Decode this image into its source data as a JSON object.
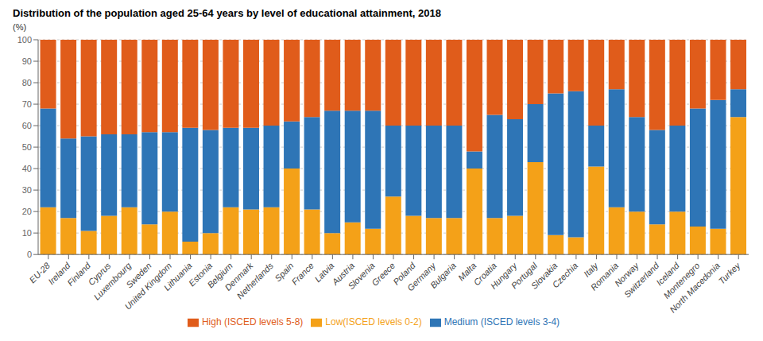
{
  "chart_data": {
    "type": "bar",
    "title": "Distribution of the population aged 25-64 years  by level of educational attainment, 2018",
    "ylabel": "(%)",
    "categories": [
      "EU-28",
      "Ireland",
      "Finland",
      "Cyprus",
      "Luxembourg",
      "Sweden",
      "United Kingdom",
      "Lithuania",
      "Estonia",
      "Belgium",
      "Denmark",
      "Netherlands",
      "Spain",
      "France",
      "Latvia",
      "Austria",
      "Slovenia",
      "Greece",
      "Poland",
      "Germany",
      "Bulgaria",
      "Malta",
      "Croatia",
      "Hungary",
      "Portugal",
      "Slovakia",
      "Czechia",
      "Italy",
      "Romania",
      "Norway",
      "Switzerland",
      "Iceland",
      "Montenegro",
      "North Macedonia",
      "Turkey"
    ],
    "series": [
      {
        "name": "Low(ISCED levels 0-2)",
        "color": "#f4a118",
        "values": [
          22,
          17,
          11,
          18,
          22,
          14,
          20,
          6,
          10,
          22,
          21,
          22,
          40,
          21,
          10,
          15,
          12,
          27,
          18,
          17,
          17,
          40,
          17,
          18,
          43,
          9,
          8,
          41,
          22,
          20,
          14,
          20,
          13,
          12,
          64
        ]
      },
      {
        "name": "Medium (ISCED levels 3-4)",
        "color": "#2e75b6",
        "values": [
          46,
          37,
          44,
          38,
          34,
          43,
          37,
          53,
          48,
          37,
          38,
          38,
          22,
          43,
          57,
          52,
          55,
          33,
          42,
          43,
          43,
          8,
          48,
          45,
          27,
          66,
          68,
          19,
          55,
          44,
          44,
          40,
          55,
          60,
          13
        ]
      },
      {
        "name": "High (ISCED levels 5-8)",
        "color": "#e05c1b",
        "values": [
          32,
          46,
          45,
          44,
          44,
          43,
          43,
          41,
          42,
          41,
          41,
          40,
          38,
          36,
          33,
          33,
          33,
          40,
          40,
          40,
          40,
          52,
          35,
          37,
          30,
          25,
          24,
          40,
          23,
          36,
          42,
          40,
          32,
          28,
          23
        ]
      }
    ],
    "stacked": true,
    "ylim": [
      0,
      100
    ],
    "yticks": [
      0,
      10,
      20,
      30,
      40,
      50,
      60,
      70,
      80,
      90,
      100
    ],
    "grid": true,
    "legend": "bottom"
  }
}
